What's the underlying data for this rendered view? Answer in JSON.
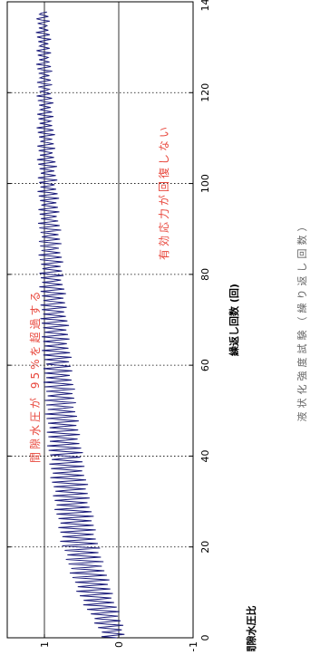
{
  "chart_data": {
    "type": "line",
    "xlabel": "繰返し回数 (回)",
    "ylabel": "過剰間隙水圧比",
    "caption": "液状化強度試験（繰り返し回数）",
    "xlim": [
      0,
      140
    ],
    "ylim": [
      -1,
      1.5
    ],
    "x_ticks": [
      0,
      20,
      40,
      60,
      80,
      100,
      120,
      140
    ],
    "y_ticks": [
      -1,
      0,
      1
    ],
    "grid": true,
    "annotations": [
      "間隙水圧が 95%を超過する",
      "有効応力が回復しない"
    ],
    "annotation_color": "#e8473c",
    "series": [
      {
        "color": "#1a1a7a",
        "cycles": 138,
        "peak_values": [
          0.2,
          0.55,
          0.75,
          0.86,
          0.93,
          0.97,
          1.0,
          1.03,
          1.05,
          1.06,
          1.07,
          1.08,
          1.08,
          1.09,
          1.09
        ],
        "trough_values": [
          -0.1,
          0.1,
          0.28,
          0.4,
          0.5,
          0.58,
          0.65,
          0.7,
          0.76,
          0.8,
          0.84,
          0.88,
          0.91,
          0.93,
          0.95
        ],
        "at_x": [
          0,
          10,
          20,
          30,
          40,
          50,
          60,
          70,
          80,
          90,
          100,
          110,
          120,
          130,
          138
        ]
      }
    ]
  }
}
